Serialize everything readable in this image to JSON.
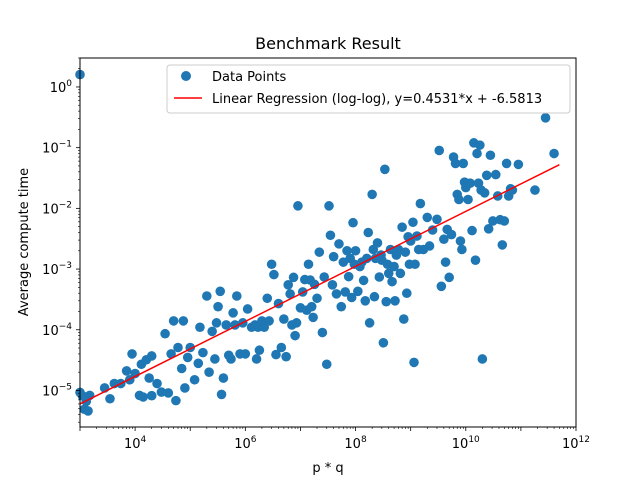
{
  "chart_data": {
    "type": "scatter",
    "title": "Benchmark Result",
    "xlabel": "p * q",
    "ylabel": "Average compute time",
    "xscale": "log",
    "yscale": "log",
    "xlim": [
      1000,
      1000000000000
    ],
    "ylim": [
      2.5e-06,
      3
    ],
    "grid": false,
    "legend_position": "top-right",
    "x_ticks": [
      {
        "value": 10000,
        "base": "10",
        "exp": "4"
      },
      {
        "value": 1000000,
        "base": "10",
        "exp": "6"
      },
      {
        "value": 100000000,
        "base": "10",
        "exp": "8"
      },
      {
        "value": 10000000000,
        "base": "10",
        "exp": "10"
      },
      {
        "value": 1000000000000,
        "base": "10",
        "exp": "12"
      }
    ],
    "y_ticks": [
      {
        "value": 1e-05,
        "base": "10",
        "exp": "−5"
      },
      {
        "value": 0.0001,
        "base": "10",
        "exp": "−4"
      },
      {
        "value": 0.001,
        "base": "10",
        "exp": "−3"
      },
      {
        "value": 0.01,
        "base": "10",
        "exp": "−2"
      },
      {
        "value": 0.1,
        "base": "10",
        "exp": "−1"
      },
      {
        "value": 1,
        "base": "10",
        "exp": "0"
      }
    ],
    "series": [
      {
        "name": "Data Points",
        "type": "scatter",
        "color": "#1f77b4",
        "points": [
          [
            1000,
            1.6
          ],
          [
            1000,
            9.3e-06
          ],
          [
            1100,
            8.2e-06
          ],
          [
            1200,
            4.9e-06
          ],
          [
            1300,
            6.6e-06
          ],
          [
            1400,
            4.6e-06
          ],
          [
            1500,
            8.3e-06
          ],
          [
            2800,
            1.1e-05
          ],
          [
            3500,
            7.3e-06
          ],
          [
            4200,
            1.3e-05
          ],
          [
            5500,
            1.3e-05
          ],
          [
            7000,
            2.1e-05
          ],
          [
            8000,
            1.5e-05
          ],
          [
            8800,
            4e-05
          ],
          [
            10000,
            1.9e-05
          ],
          [
            12000,
            8.3e-06
          ],
          [
            13000,
            2.7e-05
          ],
          [
            14000,
            7.8e-06
          ],
          [
            16000,
            3.2e-05
          ],
          [
            18000,
            1.6e-05
          ],
          [
            20000,
            8.2e-06
          ],
          [
            20000,
            3.7e-05
          ],
          [
            25000,
            1.3e-05
          ],
          [
            30000,
            9.4e-06
          ],
          [
            35000,
            8.6e-05
          ],
          [
            40000,
            9.1e-06
          ],
          [
            45000,
            4e-05
          ],
          [
            50000,
            0.00014
          ],
          [
            55000,
            6.8e-06
          ],
          [
            60000,
            5.1e-05
          ],
          [
            70000,
            2.3e-05
          ],
          [
            75000,
            0.00014
          ],
          [
            80000,
            1.1e-05
          ],
          [
            90000,
            3.5e-05
          ],
          [
            100000,
            5.1e-05
          ],
          [
            120000,
            1.5e-05
          ],
          [
            140000,
            2.8e-05
          ],
          [
            150000,
            0.00011
          ],
          [
            170000,
            4.2e-05
          ],
          [
            200000,
            0.00036
          ],
          [
            220000,
            2e-05
          ],
          [
            250000,
            9.4e-05
          ],
          [
            280000,
            3.3e-05
          ],
          [
            300000,
            0.00013
          ],
          [
            320000,
            0.00024
          ],
          [
            350000,
            0.00043
          ],
          [
            370000,
            8.6e-06
          ],
          [
            400000,
            1.6e-05
          ],
          [
            450000,
            0.00012
          ],
          [
            500000,
            3.8e-05
          ],
          [
            550000,
            3.3e-05
          ],
          [
            600000,
            0.00019
          ],
          [
            650000,
            0.00012
          ],
          [
            700000,
            0.00036
          ],
          [
            800000,
            4e-05
          ],
          [
            900000,
            0.00013
          ],
          [
            1000000,
            4e-05
          ],
          [
            1100000,
            0.00022
          ],
          [
            1300000,
            0.00011
          ],
          [
            1500000,
            0.00012
          ],
          [
            1600000,
            3.3e-05
          ],
          [
            1700000,
            0.00011
          ],
          [
            1800000,
            4.6e-05
          ],
          [
            2000000,
            0.00014
          ],
          [
            2200000,
            0.00011
          ],
          [
            2500000,
            0.00033
          ],
          [
            2700000,
            0.00014
          ],
          [
            3000000,
            0.0012
          ],
          [
            3300000,
            0.00081
          ],
          [
            3600000,
            3.9e-05
          ],
          [
            4000000,
            0.00027
          ],
          [
            4500000,
            5.1e-05
          ],
          [
            5000000,
            0.00015
          ],
          [
            5500000,
            3.6e-05
          ],
          [
            6000000,
            0.00055
          ],
          [
            6500000,
            0.00039
          ],
          [
            7000000,
            0.00012
          ],
          [
            7500000,
            0.00073
          ],
          [
            8000000,
            8e-05
          ],
          [
            8500000,
            0.00013
          ],
          [
            9000000,
            0.011
          ],
          [
            10000000,
            0.00023
          ],
          [
            11000000,
            0.00042
          ],
          [
            12000000,
            0.00067
          ],
          [
            13000000,
            0.00021
          ],
          [
            14000000,
            0.0012
          ],
          [
            15000000,
            0.00066
          ],
          [
            16000000,
            0.00024
          ],
          [
            17000000,
            0.00016
          ],
          [
            18000000,
            0.00056
          ],
          [
            20000000,
            0.00033
          ],
          [
            22000000,
            0.0019
          ],
          [
            25000000,
            9e-05
          ],
          [
            27000000,
            0.00074
          ],
          [
            30000000,
            2.7e-05
          ],
          [
            33000000,
            0.011
          ],
          [
            35000000,
            0.0036
          ],
          [
            38000000,
            0.00055
          ],
          [
            40000000,
            0.0016
          ],
          [
            45000000,
            0.00039
          ],
          [
            50000000,
            0.0026
          ],
          [
            55000000,
            0.00024
          ],
          [
            60000000,
            0.0013
          ],
          [
            65000000,
            0.00042
          ],
          [
            70000000,
            0.002
          ],
          [
            75000000,
            0.00075
          ],
          [
            80000000,
            0.0015
          ],
          [
            85000000,
            0.00034
          ],
          [
            90000000,
            0.0058
          ],
          [
            95000000,
            0.0012
          ],
          [
            100000000,
            0.002
          ],
          [
            110000000,
            0.00043
          ],
          [
            120000000,
            0.0011
          ],
          [
            130000000,
            0.0013
          ],
          [
            140000000,
            0.00065
          ],
          [
            150000000,
            0.0003
          ],
          [
            160000000,
            0.0015
          ],
          [
            170000000,
            0.004
          ],
          [
            180000000,
            0.00013
          ],
          [
            200000000,
            0.017
          ],
          [
            210000000,
            0.0021
          ],
          [
            220000000,
            0.00035
          ],
          [
            230000000,
            0.0015
          ],
          [
            250000000,
            0.0027
          ],
          [
            270000000,
            0.00074
          ],
          [
            290000000,
            0.0017
          ],
          [
            300000000,
            0.0014
          ],
          [
            320000000,
            6.1e-05
          ],
          [
            340000000,
            0.044
          ],
          [
            360000000,
            0.00029
          ],
          [
            380000000,
            0.0012
          ],
          [
            400000000,
            0.00085
          ],
          [
            430000000,
            0.0021
          ],
          [
            460000000,
            0.00062
          ],
          [
            500000000,
            0.0011
          ],
          [
            520000000,
            0.0003
          ],
          [
            550000000,
            0.0017
          ],
          [
            600000000,
            0.0021
          ],
          [
            650000000,
            0.00085
          ],
          [
            700000000,
            0.0049
          ],
          [
            750000000,
            0.00015
          ],
          [
            800000000,
            0.0019
          ],
          [
            850000000,
            0.0004
          ],
          [
            900000000,
            0.0034
          ],
          [
            950000000,
            0.0012
          ],
          [
            1000000000,
            0.0029
          ],
          [
            1100000000,
            0.0059
          ],
          [
            1150000000,
            2.9e-05
          ],
          [
            1200000000,
            0.0012
          ],
          [
            1300000000,
            0.0035
          ],
          [
            1400000000,
            0.0021
          ],
          [
            1500000000,
            0.012
          ],
          [
            1700000000,
            0.0021
          ],
          [
            2000000000,
            0.0071
          ],
          [
            2200000000,
            0.0024
          ],
          [
            2500000000,
            0.0044
          ],
          [
            3000000000,
            0.0066
          ],
          [
            3300000000,
            0.09
          ],
          [
            3600000000,
            0.00052
          ],
          [
            4000000000,
            0.0031
          ],
          [
            4300000000,
            0.0013
          ],
          [
            4600000000,
            0.0045
          ],
          [
            5000000000,
            0.00073
          ],
          [
            5500000000,
            0.0037
          ],
          [
            6000000000,
            0.07
          ],
          [
            6500000000,
            0.055
          ],
          [
            7000000000,
            0.017
          ],
          [
            7500000000,
            0.014
          ],
          [
            8000000000,
            0.0029
          ],
          [
            8500000000,
            0.0021
          ],
          [
            9000000000,
            0.055
          ],
          [
            9500000000,
            0.027
          ],
          [
            10000000000,
            0.022
          ],
          [
            11000000000,
            0.014
          ],
          [
            12000000000,
            0.026
          ],
          [
            13000000000,
            0.0043
          ],
          [
            14000000000,
            0.12
          ],
          [
            15000000000,
            0.0014
          ],
          [
            16000000000,
            0.08
          ],
          [
            17000000000,
            0.026
          ],
          [
            18000000000,
            0.11
          ],
          [
            19000000000,
            0.02
          ],
          [
            20000000000,
            3.3e-05
          ],
          [
            22000000000,
            0.018
          ],
          [
            24000000000,
            0.035
          ],
          [
            26000000000,
            0.0046
          ],
          [
            28000000000,
            0.075
          ],
          [
            31000000000,
            0.0062
          ],
          [
            35000000000,
            0.036
          ],
          [
            38000000000,
            0.016
          ],
          [
            42000000000,
            0.0065
          ],
          [
            46000000000,
            0.0025
          ],
          [
            50000000000,
            0.0062
          ],
          [
            55000000000,
            0.055
          ],
          [
            60000000000,
            0.016
          ],
          [
            65000000000,
            0.021
          ],
          [
            70000000000,
            0.02
          ],
          [
            90000000000,
            0.053
          ],
          [
            180000000000,
            0.02
          ],
          [
            280000000000,
            0.31
          ],
          [
            400000000000,
            0.08
          ]
        ]
      },
      {
        "name": "Linear Regression (log-log), y=0.4531*x + -6.5813",
        "type": "line",
        "color": "#ff0000",
        "slope": 0.4531,
        "intercept": -6.5813,
        "x_range": [
          1000,
          500000000000
        ]
      }
    ]
  }
}
